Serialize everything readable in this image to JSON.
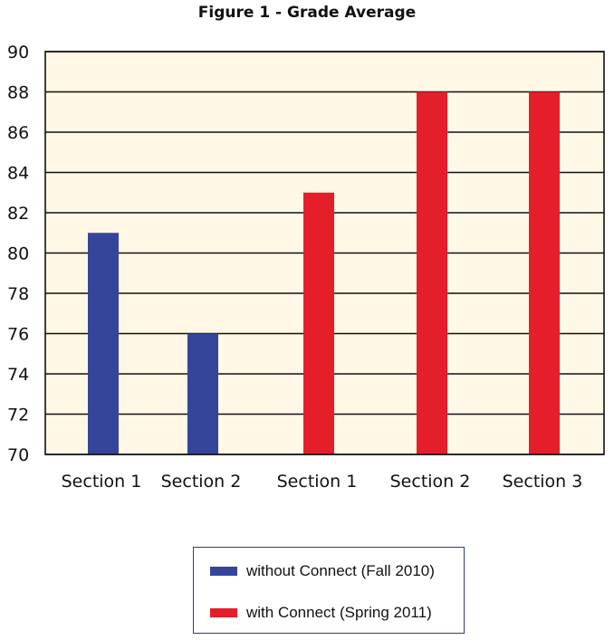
{
  "chart_data": {
    "type": "bar",
    "title": "Figure 1 - Grade Average",
    "categories": [
      "Section 1",
      "Section 2",
      "Section 1",
      "Section 2",
      "Section 3"
    ],
    "series": [
      {
        "name": "without Connect (Fall 2010)",
        "color": "#34459a",
        "values": [
          81,
          76,
          null,
          null,
          null
        ]
      },
      {
        "name": "with Connect (Spring 2011)",
        "color": "#e41f2a",
        "values": [
          null,
          null,
          83,
          88,
          88
        ]
      }
    ],
    "ylim": [
      70,
      90
    ],
    "yticks": [
      70,
      72,
      74,
      76,
      78,
      80,
      82,
      84,
      86,
      88,
      90
    ],
    "grid": true,
    "plot_background": "#fff8e6",
    "legend_position": "bottom"
  }
}
